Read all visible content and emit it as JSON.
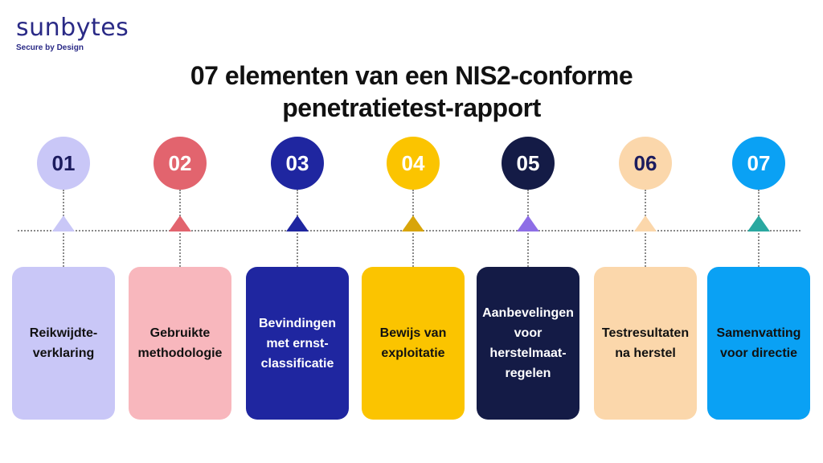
{
  "logo": {
    "word": "sunbytes",
    "tagline": "Secure by Design"
  },
  "title": {
    "line1": "07 elementen van een NIS2-conforme",
    "line2": "penetratietest-rapport"
  },
  "steps": [
    {
      "number": "01",
      "label_lines": [
        "Reikwijdte-",
        "verklaring"
      ],
      "circle_color": "#c9c7f7",
      "number_color": "#1c1c5e",
      "triangle_color": "#c9c7f7",
      "card_color": "#c9c7f7",
      "text_color": "#111111"
    },
    {
      "number": "02",
      "label_lines": [
        "Gebruikte",
        "methodologie"
      ],
      "circle_color": "#e2646e",
      "number_color": "#ffffff",
      "triangle_color": "#e2646e",
      "card_color": "#f8b7bd",
      "text_color": "#111111"
    },
    {
      "number": "03",
      "label_lines": [
        "Bevindingen",
        "met ernst-",
        "classificatie"
      ],
      "circle_color": "#1f26a0",
      "number_color": "#ffffff",
      "triangle_color": "#1f26a0",
      "card_color": "#1f26a0",
      "text_color": "#ffffff"
    },
    {
      "number": "04",
      "label_lines": [
        "Bewijs van",
        "exploitatie"
      ],
      "circle_color": "#fbc400",
      "number_color": "#ffffff",
      "triangle_color": "#d8a50a",
      "card_color": "#fbc400",
      "text_color": "#111111"
    },
    {
      "number": "05",
      "label_lines": [
        "Aanbevelingen",
        "voor",
        "herstelmaat-",
        "regelen"
      ],
      "circle_color": "#141b46",
      "number_color": "#ffffff",
      "triangle_color": "#8e6ee6",
      "card_color": "#141b46",
      "text_color": "#ffffff"
    },
    {
      "number": "06",
      "label_lines": [
        "Testresultaten",
        "na herstel"
      ],
      "circle_color": "#fbd7ab",
      "number_color": "#1c1c5e",
      "triangle_color": "#fbd7ab",
      "card_color": "#fbd7ab",
      "text_color": "#111111"
    },
    {
      "number": "07",
      "label_lines": [
        "Samenvatting",
        "voor directie"
      ],
      "circle_color": "#0aa1f4",
      "number_color": "#ffffff",
      "triangle_color": "#2aa8a0",
      "card_color": "#0aa1f4",
      "text_color": "#111111"
    }
  ]
}
